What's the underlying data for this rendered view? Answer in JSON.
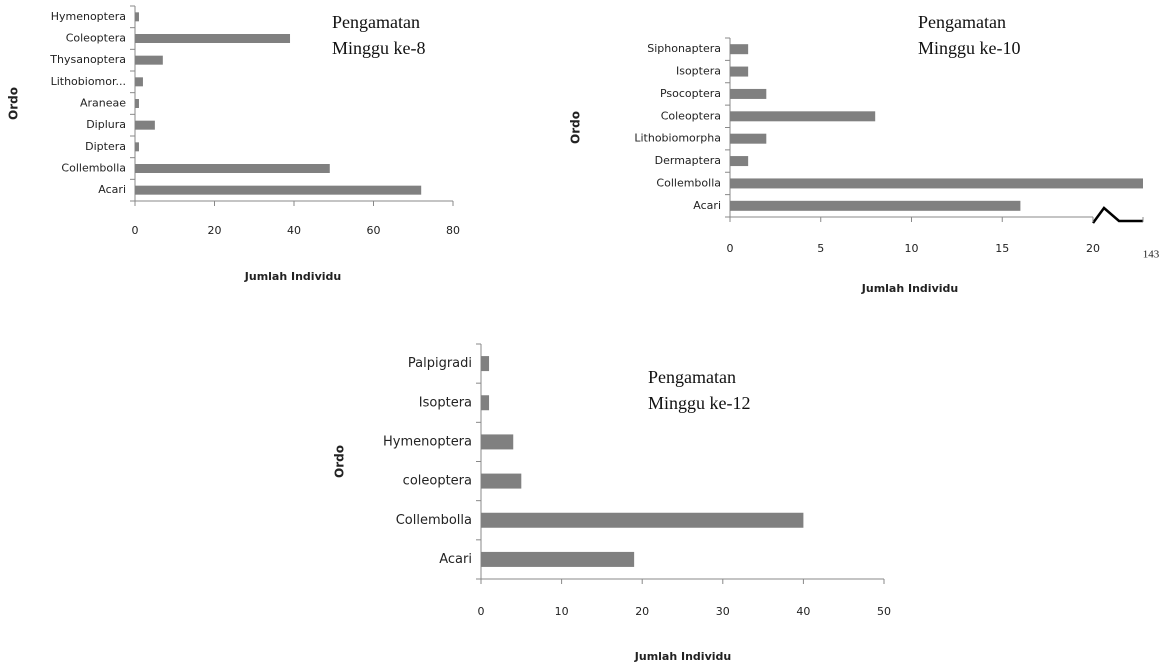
{
  "chart_data": [
    {
      "type": "bar",
      "orientation": "horizontal",
      "title": "Pengamatan Minggu ke-8",
      "xlabel": "Jumlah Individu",
      "ylabel": "Ordo",
      "categories": [
        "Acari",
        "Collembolla",
        "Diptera",
        "Diplura",
        "Araneae",
        "Lithobiomor...",
        "Thysanoptera",
        "Coleoptera",
        "Hymenoptera"
      ],
      "values": [
        72,
        49,
        1,
        5,
        1,
        2,
        7,
        39,
        1
      ],
      "color": "#808080",
      "xlim": [
        0,
        80
      ],
      "xticks": [
        0,
        20,
        40,
        60,
        80
      ],
      "grid": false
    },
    {
      "type": "bar",
      "orientation": "horizontal",
      "title": "Pengamatan Minggu ke-10",
      "xlabel": "Jumlah Individu",
      "ylabel": "Ordo",
      "categories": [
        "Acari",
        "Collembolla",
        "Dermaptera",
        "Lithobiomorpha",
        "Coleoptera",
        "Psocoptera",
        "Isoptera",
        "Siphonaptera"
      ],
      "values": [
        16,
        143,
        1,
        2,
        8,
        2,
        1,
        1
      ],
      "color": "#808080",
      "xlim": [
        0,
        143
      ],
      "xticks": [
        0,
        5,
        10,
        15,
        20,
        143
      ],
      "axis_break": [
        20,
        143
      ],
      "grid": false
    },
    {
      "type": "bar",
      "orientation": "horizontal",
      "title": "Pengamatan Minggu ke-12",
      "xlabel": "Jumlah Individu",
      "ylabel": "Ordo",
      "categories": [
        "Acari",
        "Collembolla",
        "coleoptera",
        "Hymenoptera",
        "Isoptera",
        "Palpigradi"
      ],
      "values": [
        19,
        40,
        5,
        4,
        1,
        1
      ],
      "color": "#808080",
      "xlim": [
        0,
        50
      ],
      "xticks": [
        0,
        10,
        20,
        30,
        40,
        50
      ],
      "grid": false
    }
  ]
}
